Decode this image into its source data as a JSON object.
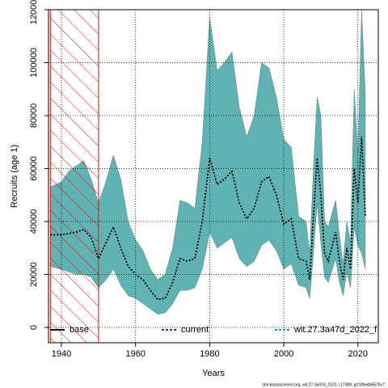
{
  "chart_data": {
    "type": "line",
    "x_label": "Years",
    "y_label": "Recruits (age 1)",
    "footer": "stockassessment.org, wit.27.3a47d_2023, r17389, git:5fbe4d657bc7",
    "xlim": [
      1936.5,
      2025.5
    ],
    "ylim": [
      -5800,
      120000
    ],
    "xticks": [
      1940,
      1960,
      1980,
      2000,
      2020
    ],
    "yticks": [
      0,
      20000,
      40000,
      60000,
      80000,
      100000,
      120000
    ],
    "grid": true,
    "highlight_xrange": [
      1937,
      1950
    ],
    "highlight_color": "#ff0000",
    "x": [
      1937,
      1940,
      1942,
      1944,
      1946,
      1948,
      1950,
      1952,
      1954,
      1956,
      1958,
      1960,
      1962,
      1964,
      1966,
      1968,
      1970,
      1972,
      1974,
      1976,
      1978,
      1980,
      1982,
      1984,
      1986,
      1988,
      1990,
      1992,
      1994,
      1996,
      1998,
      2000,
      2002,
      2004,
      2006,
      2007,
      2008,
      2009,
      2010,
      2011,
      2012,
      2014,
      2015,
      2016,
      2017,
      2018,
      2019,
      2020,
      2021,
      2022
    ],
    "series": [
      {
        "name": "base",
        "color": "#000000",
        "dash": "solid",
        "values": [
          35000,
          35000,
          35500,
          36000,
          37000,
          34000,
          26000,
          32000,
          38000,
          30000,
          23000,
          20000,
          18000,
          14000,
          10500,
          11000,
          17000,
          26000,
          25000,
          26000,
          40000,
          64000,
          54000,
          56000,
          59000,
          47000,
          41000,
          45000,
          55000,
          57000,
          50000,
          39000,
          41000,
          26000,
          25000,
          18000,
          42000,
          64000,
          50000,
          28000,
          25000,
          36000,
          25000,
          18000,
          30000,
          22000,
          60000,
          47000,
          72000,
          42000
        ]
      },
      {
        "name": "current",
        "color": "#1a3a8a",
        "dash": "dashed",
        "values": null
      },
      {
        "name": "wit.27.3a47d_2022_f",
        "color": "#2a9090",
        "dash": "dashed",
        "values": null
      }
    ],
    "band": {
      "color": "#5fb3b3",
      "upper": [
        53000,
        55000,
        59000,
        61000,
        63000,
        56000,
        47000,
        55000,
        65000,
        56000,
        40000,
        33000,
        29000,
        22000,
        18000,
        20000,
        30000,
        48000,
        47000,
        45000,
        70000,
        117000,
        97000,
        100000,
        104000,
        83000,
        72000,
        80000,
        100000,
        98000,
        87000,
        71000,
        68000,
        42000,
        40000,
        28000,
        60000,
        87000,
        80000,
        40000,
        38000,
        48000,
        35000,
        24000,
        40000,
        32000,
        90000,
        65000,
        120000,
        88000
      ],
      "lower": [
        23000,
        22000,
        21000,
        20000,
        20000,
        19000,
        15000,
        18000,
        22000,
        16000,
        12000,
        11000,
        9000,
        7000,
        5000,
        5500,
        9000,
        14000,
        14000,
        15000,
        22000,
        36000,
        30000,
        32000,
        34000,
        26000,
        23000,
        25000,
        31000,
        33000,
        29000,
        22000,
        24000,
        16000,
        15000,
        11000,
        28000,
        47000,
        32000,
        19000,
        17000,
        26000,
        17000,
        12000,
        21000,
        15000,
        38000,
        31000,
        28000,
        22000
      ]
    }
  }
}
